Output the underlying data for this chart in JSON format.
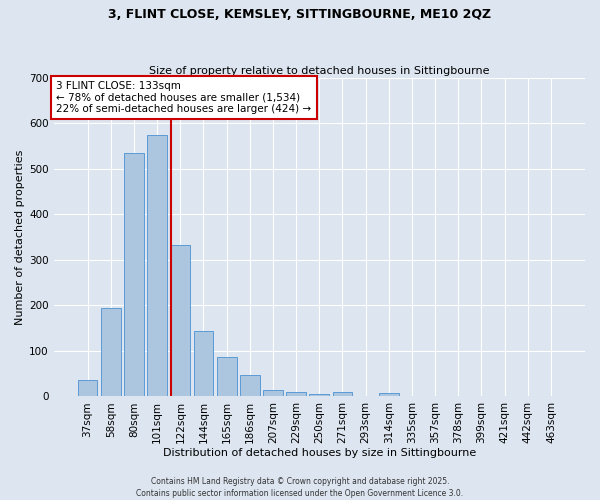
{
  "title1": "3, FLINT CLOSE, KEMSLEY, SITTINGBOURNE, ME10 2QZ",
  "title2": "Size of property relative to detached houses in Sittingbourne",
  "xlabel": "Distribution of detached houses by size in Sittingbourne",
  "ylabel": "Number of detached properties",
  "categories": [
    "37sqm",
    "58sqm",
    "80sqm",
    "101sqm",
    "122sqm",
    "144sqm",
    "165sqm",
    "186sqm",
    "207sqm",
    "229sqm",
    "250sqm",
    "271sqm",
    "293sqm",
    "314sqm",
    "335sqm",
    "357sqm",
    "378sqm",
    "399sqm",
    "421sqm",
    "442sqm",
    "463sqm"
  ],
  "values": [
    35,
    193,
    535,
    575,
    333,
    144,
    86,
    47,
    14,
    10,
    5,
    10,
    0,
    8,
    0,
    0,
    0,
    0,
    0,
    0,
    0
  ],
  "bar_color": "#adc6e0",
  "bar_edge_color": "#5b9bd5",
  "vline_color": "#cc0000",
  "vline_pos": 3.6,
  "annotation_text": "3 FLINT CLOSE: 133sqm\n← 78% of detached houses are smaller (1,534)\n22% of semi-detached houses are larger (424) →",
  "annotation_box_color": "#ffffff",
  "annotation_box_edge": "#cc0000",
  "footer1": "Contains HM Land Registry data © Crown copyright and database right 2025.",
  "footer2": "Contains public sector information licensed under the Open Government Licence 3.0.",
  "bg_color": "#dde6f0",
  "plot_bg_color": "#dde6f0",
  "ylim": [
    0,
    700
  ],
  "yticks": [
    0,
    100,
    200,
    300,
    400,
    500,
    600,
    700
  ]
}
